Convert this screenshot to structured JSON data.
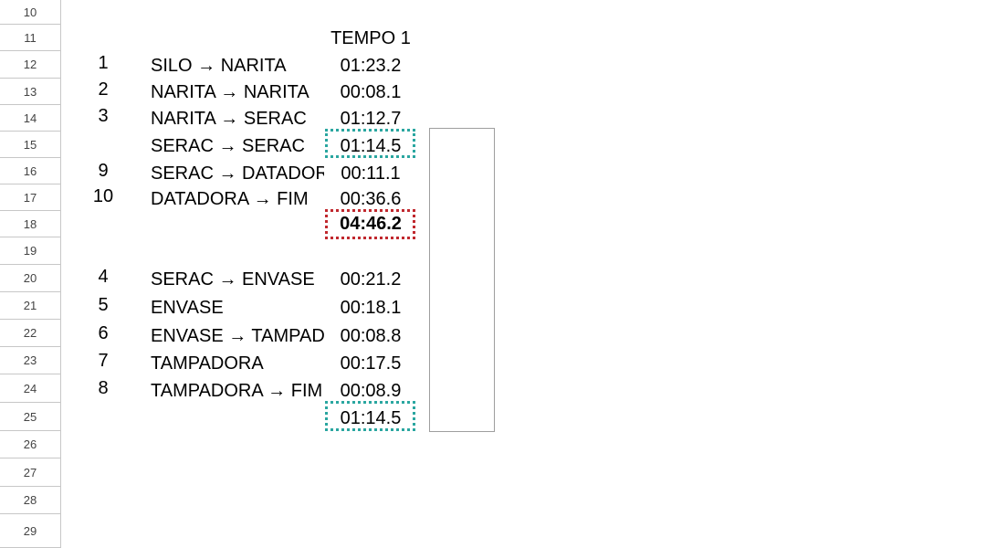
{
  "row_headers": [
    "10",
    "11",
    "12",
    "13",
    "14",
    "15",
    "16",
    "17",
    "18",
    "19",
    "20",
    "21",
    "22",
    "23",
    "24",
    "25",
    "26",
    "27",
    "28",
    "29"
  ],
  "sheet": {
    "header_tempo": "TEMPO 1",
    "rows": [
      {
        "row": "12",
        "num": "1",
        "label": "SILO → NARITA",
        "time": "01:23.2"
      },
      {
        "row": "13",
        "num": "2",
        "label": "NARITA → NARITA",
        "time": "00:08.1"
      },
      {
        "row": "14",
        "num": "3",
        "label": "NARITA → SERAC",
        "time": "01:12.7"
      },
      {
        "row": "15",
        "num": "",
        "label": "SERAC → SERAC",
        "time": "01:14.5"
      },
      {
        "row": "16",
        "num": "9",
        "label": "SERAC → DATADORA",
        "time": "00:11.1"
      },
      {
        "row": "17",
        "num": "10",
        "label": "DATADORA → FIM",
        "time": "00:36.6"
      },
      {
        "row": "18",
        "num": "",
        "label": "",
        "time": "04:46.2"
      },
      {
        "row": "20",
        "num": "4",
        "label": "SERAC → ENVASE",
        "time": "00:21.2"
      },
      {
        "row": "21",
        "num": "5",
        "label": "ENVASE",
        "time": "00:18.1"
      },
      {
        "row": "22",
        "num": "6",
        "label": "ENVASE → TAMPADORA",
        "time": "00:08.8"
      },
      {
        "row": "23",
        "num": "7",
        "label": "TAMPADORA",
        "time": "00:17.5"
      },
      {
        "row": "24",
        "num": "8",
        "label": "TAMPADORA → FIM",
        "time": "00:08.9"
      },
      {
        "row": "25",
        "num": "",
        "label": "",
        "time": "01:14.5"
      }
    ]
  },
  "colors": {
    "reference_teal": "#2aa6a0",
    "reference_red": "#c0282e",
    "grid_line": "#c7c7c7"
  }
}
